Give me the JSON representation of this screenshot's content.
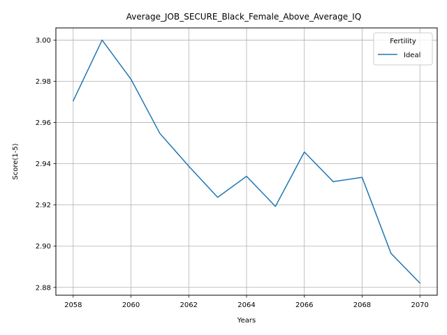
{
  "chart_data": {
    "type": "line",
    "title": "Average_JOB_SECURE_Black_Female_Above_Average_IQ",
    "xlabel": "Years",
    "ylabel": "Score(1-5)",
    "x": [
      2058,
      2059,
      2060,
      2061,
      2062,
      2063,
      2064,
      2065,
      2066,
      2067,
      2068,
      2069,
      2070
    ],
    "xticks": [
      2058,
      2060,
      2062,
      2064,
      2066,
      2068,
      2070
    ],
    "xtick_labels": [
      "2058",
      "2060",
      "2062",
      "2064",
      "2066",
      "2068",
      "2070"
    ],
    "yticks": [
      2.88,
      2.9,
      2.92,
      2.94,
      2.96,
      2.98,
      3.0
    ],
    "ytick_labels": [
      "2.88",
      "2.90",
      "2.92",
      "2.94",
      "2.96",
      "2.98",
      "3.00"
    ],
    "xlim": [
      2057.4,
      2070.6
    ],
    "ylim": [
      2.8762,
      3.0059
    ],
    "grid": true,
    "legend": {
      "title": "Fertility",
      "placement": "top-right"
    },
    "series": [
      {
        "name": "Ideal",
        "color": "#1f77b4",
        "values": [
          2.9705,
          3.0,
          2.981,
          2.9547,
          2.9388,
          2.9237,
          2.9339,
          2.9193,
          2.9457,
          2.9313,
          2.9334,
          2.8965,
          2.8821
        ]
      }
    ]
  }
}
